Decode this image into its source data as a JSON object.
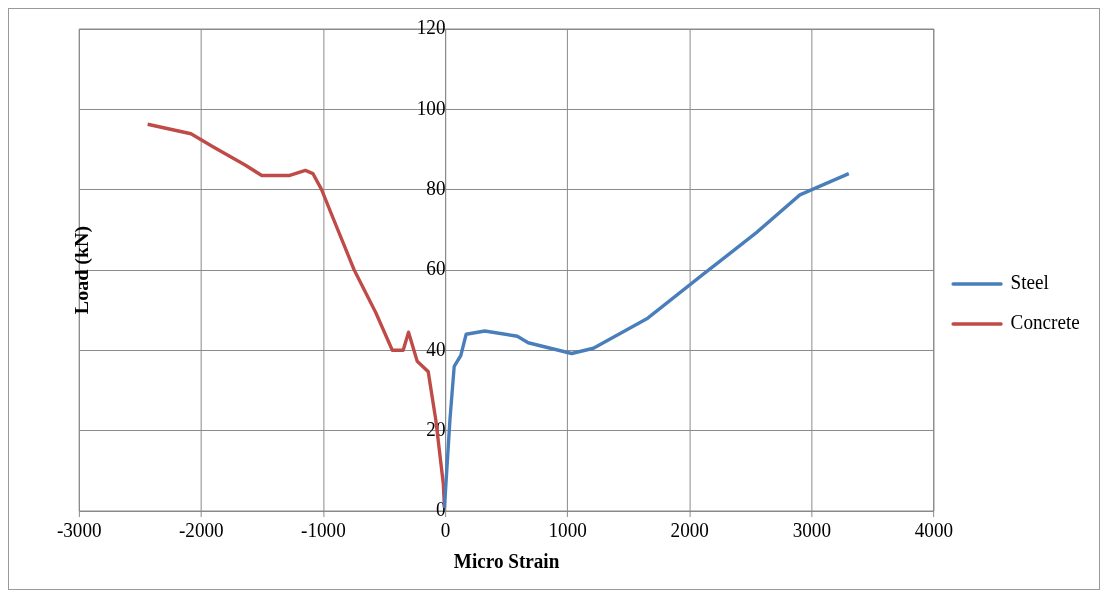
{
  "chart_data": {
    "type": "line",
    "xlabel": "Micro Strain",
    "ylabel": "Load (kN)",
    "xlim": [
      -3000,
      4000
    ],
    "xticks": [
      -3000,
      -2000,
      -1000,
      0,
      1000,
      2000,
      3000,
      4000
    ],
    "ylim": [
      0,
      120
    ],
    "yticks": [
      0,
      20,
      40,
      60,
      80,
      100,
      120
    ],
    "grid": true,
    "legend": "right",
    "marker": "none",
    "line_style": "solid",
    "series": [
      {
        "name": "Steel",
        "color": "#4a7ebb",
        "x": [
          -9,
          36,
          71,
          125,
          169,
          321,
          588,
          677,
          1033,
          1211,
          1656,
          2101,
          2546,
          2902,
          3303
        ],
        "values": [
          0.8,
          22.7,
          36,
          38.7,
          44,
          44.8,
          43.5,
          41.9,
          39.2,
          40.5,
          48,
          58.7,
          69.3,
          78.7,
          84
        ]
      },
      {
        "name": "Concrete",
        "color": "#be4b48",
        "x": [
          -2440,
          -2085,
          -1905,
          -1638,
          -1505,
          -1282,
          -1148,
          -1086,
          -1015,
          -926,
          -748,
          -570,
          -436,
          -347,
          -303,
          -232,
          -142,
          -80,
          -18,
          -9
        ],
        "values": [
          96.3,
          93.9,
          90.7,
          86.1,
          83.5,
          83.5,
          84.8,
          84,
          80,
          73.3,
          60,
          49.3,
          40,
          40,
          44.5,
          37.3,
          34.7,
          22.7,
          6.7,
          0.8
        ]
      }
    ]
  }
}
